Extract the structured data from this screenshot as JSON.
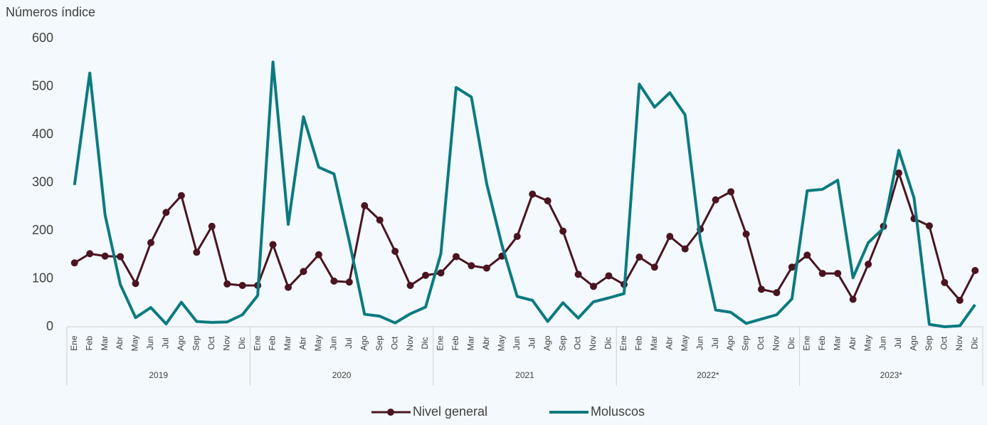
{
  "chart_data": {
    "type": "line",
    "y_axis_label": "Números índice",
    "categories": [
      "Ene",
      "Feb",
      "Mar",
      "Abr",
      "May",
      "Jun",
      "Jul",
      "Ago",
      "Sep",
      "Oct",
      "Nov",
      "Dic",
      "Ene",
      "Feb",
      "Mar",
      "Abr",
      "May",
      "Jun",
      "Jul",
      "Ago",
      "Sep",
      "Oct",
      "Nov",
      "Dic",
      "Ene",
      "Feb",
      "Mar",
      "Abr",
      "May",
      "Jun",
      "Jul",
      "Ago",
      "Sep",
      "Oct",
      "Nov",
      "Dic",
      "Ene",
      "Feb",
      "Mar",
      "Abr",
      "May",
      "Jun",
      "Jul",
      "Ago",
      "Sep",
      "Oct",
      "Nov",
      "Dic",
      "Ene",
      "Feb",
      "Mar",
      "Abr",
      "May",
      "Jun",
      "Jul",
      "Ago",
      "Sep",
      "Oct",
      "Nov",
      "Dic"
    ],
    "groups": [
      "2019",
      "2020",
      "2021",
      "2022*",
      "2023*"
    ],
    "series": [
      {
        "name": "Nivel general",
        "color": "#4a1420",
        "markers": true,
        "values": [
          133,
          152,
          147,
          146,
          90,
          175,
          238,
          273,
          155,
          209,
          89,
          86,
          86,
          171,
          82,
          115,
          150,
          95,
          93,
          252,
          222,
          157,
          86,
          107,
          112,
          146,
          127,
          122,
          147,
          188,
          276,
          262,
          199,
          109,
          84,
          106,
          88,
          145,
          124,
          188,
          162,
          203,
          264,
          281,
          193,
          78,
          71,
          124,
          149,
          111,
          111,
          57,
          130,
          209,
          320,
          225,
          210,
          92,
          55,
          117
        ]
      },
      {
        "name": "Moluscos",
        "color": "#0b7a80",
        "markers": false,
        "values": [
          295,
          528,
          233,
          88,
          19,
          40,
          6,
          51,
          11,
          9,
          10,
          25,
          65,
          551,
          213,
          437,
          332,
          318,
          178,
          26,
          22,
          8,
          27,
          41,
          152,
          498,
          478,
          298,
          170,
          63,
          55,
          11,
          50,
          18,
          52,
          60,
          69,
          505,
          457,
          487,
          441,
          180,
          35,
          30,
          7,
          16,
          25,
          58,
          283,
          286,
          305,
          102,
          175,
          205,
          367,
          268,
          5,
          0,
          2,
          46
        ]
      }
    ],
    "ylim": [
      0,
      600
    ],
    "yticks": [
      0,
      100,
      200,
      300,
      400,
      500,
      600
    ],
    "grid": false,
    "legend": "bottom"
  }
}
